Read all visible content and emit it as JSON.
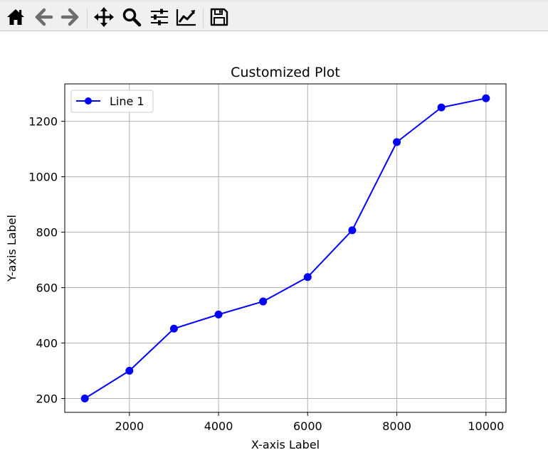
{
  "toolbar": {
    "buttons": [
      {
        "icon": "home-icon"
      },
      {
        "icon": "back-arrow-icon"
      },
      {
        "icon": "forward-arrow-icon"
      },
      {
        "icon": "pan-move-icon"
      },
      {
        "icon": "zoom-magnifier-icon"
      },
      {
        "icon": "subplots-sliders-icon"
      },
      {
        "icon": "edit-curves-icon"
      },
      {
        "icon": "save-floppy-icon"
      }
    ]
  },
  "chart_data": {
    "type": "line",
    "title": "Customized Plot",
    "xlabel": "X-axis Label",
    "ylabel": "Y-axis Label",
    "xlim": [
      550,
      10450
    ],
    "ylim": [
      150,
      1335
    ],
    "xticks": [
      2000,
      4000,
      6000,
      8000,
      10000
    ],
    "yticks": [
      200,
      400,
      600,
      800,
      1000,
      1200
    ],
    "grid": true,
    "legend_position": "top-left",
    "series": [
      {
        "name": "Line 1",
        "color": "#0000ff",
        "marker": "circle",
        "x": [
          1000,
          2000,
          3000,
          4000,
          5000,
          6000,
          7000,
          8000,
          9000,
          10000
        ],
        "y": [
          200,
          300,
          452,
          503,
          550,
          638,
          807,
          1125,
          1250,
          1283
        ]
      }
    ]
  }
}
